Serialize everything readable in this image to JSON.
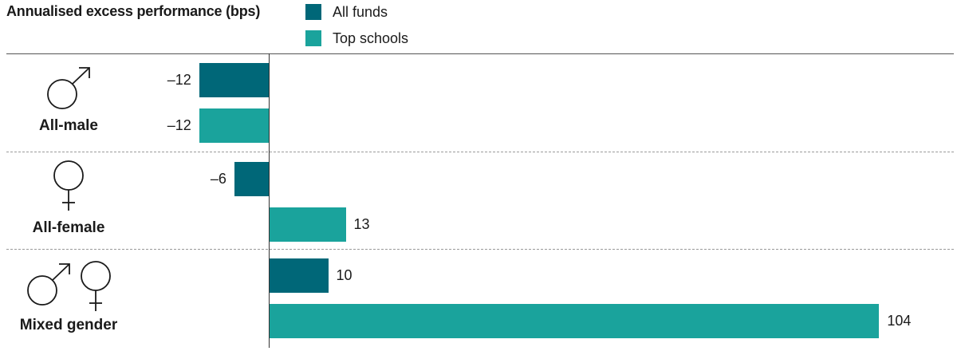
{
  "chart_data": {
    "type": "bar",
    "orientation": "horizontal",
    "title": "Annualised excess performance (bps)",
    "categories": [
      "All-male",
      "All-female",
      "Mixed gender"
    ],
    "category_icons": [
      [
        "male-symbol-icon"
      ],
      [
        "female-symbol-icon"
      ],
      [
        "male-symbol-icon",
        "female-symbol-icon"
      ]
    ],
    "series": [
      {
        "name": "All funds",
        "color": "#006778",
        "values": [
          -12,
          -6,
          10
        ]
      },
      {
        "name": "Top schools",
        "color": "#1aa39c",
        "values": [
          -12,
          13,
          104
        ]
      }
    ],
    "value_labels": [
      [
        "–12",
        "–6",
        "10"
      ],
      [
        "–12",
        "13",
        "104"
      ]
    ],
    "xlim": [
      -45,
      120
    ],
    "legend_position": "top",
    "grid": false
  }
}
